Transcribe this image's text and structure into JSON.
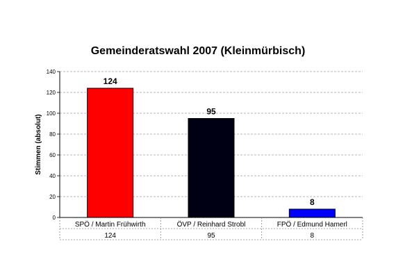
{
  "chart_data": {
    "type": "bar",
    "title": "Gemeinderatswahl 2007 (Kleinmürbisch)",
    "xlabel": "",
    "ylabel": "Stimmen (absolut)",
    "ylim": [
      0,
      140
    ],
    "yticks": [
      0,
      20,
      40,
      60,
      80,
      100,
      120,
      140
    ],
    "grid": true,
    "legend": "none",
    "categories": [
      "SPÖ / Martin Frühwirth",
      "ÖVP / Reinhard Strobl",
      "FPÖ / Edmund Hamerl"
    ],
    "values": [
      124,
      95,
      8
    ],
    "data_labels": [
      "124",
      "95",
      "8"
    ],
    "table_values": [
      "124",
      "95",
      "8"
    ],
    "colors": [
      "#ff0000",
      "#000014",
      "#0000ff"
    ]
  }
}
